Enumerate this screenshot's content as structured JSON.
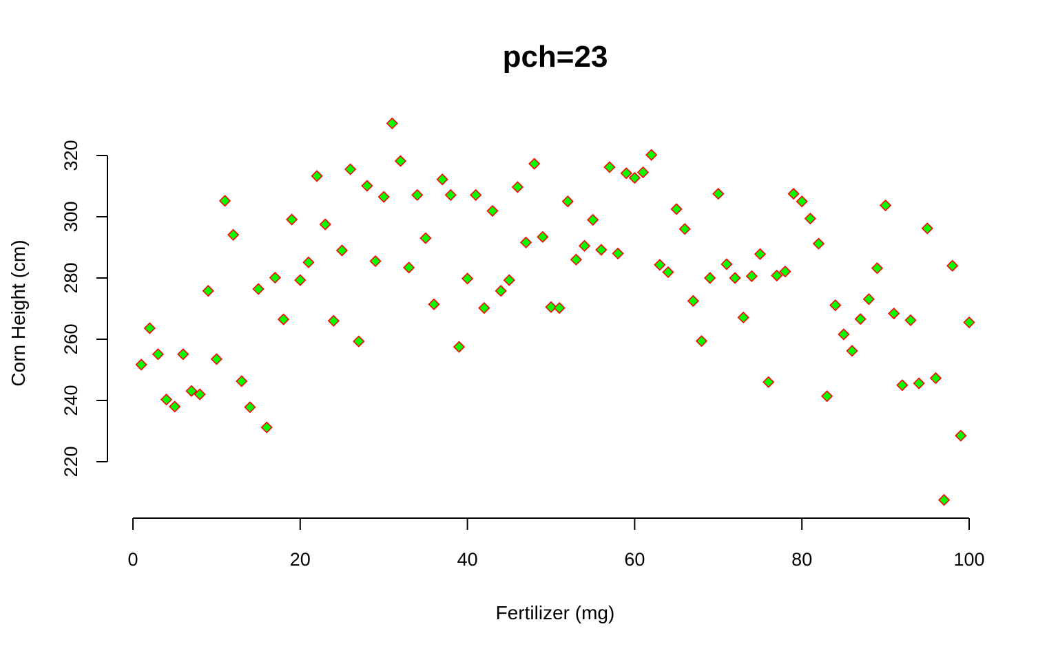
{
  "chart_data": {
    "type": "scatter",
    "title": "pch=23",
    "xlabel": "Fertilizer (mg)",
    "ylabel": "Corn Height (cm)",
    "xlim": [
      0,
      100
    ],
    "ylim": [
      207.5,
      330.5
    ],
    "x_ticks": [
      0,
      20,
      40,
      60,
      80,
      100
    ],
    "x_tick_labels": [
      "0",
      "20",
      "40",
      "60",
      "80",
      "100"
    ],
    "y_ticks": [
      220,
      240,
      260,
      280,
      300,
      320
    ],
    "y_tick_labels": [
      "220",
      "240",
      "260",
      "280",
      "300",
      "320"
    ],
    "grid": false,
    "marker": {
      "shape": "diamond",
      "fill": "#00ff00",
      "stroke": "#ff0000"
    },
    "points": [
      [
        1,
        251.7
      ],
      [
        2,
        263.6
      ],
      [
        3,
        255.1
      ],
      [
        4,
        240.3
      ],
      [
        5,
        238.0
      ],
      [
        6,
        255.1
      ],
      [
        7,
        243.1
      ],
      [
        8,
        242.0
      ],
      [
        9,
        275.8
      ],
      [
        10,
        253.5
      ],
      [
        11,
        305.2
      ],
      [
        12,
        294.1
      ],
      [
        13,
        246.3
      ],
      [
        14,
        237.8
      ],
      [
        15,
        276.4
      ],
      [
        16,
        231.2
      ],
      [
        17,
        280.1
      ],
      [
        18,
        266.5
      ],
      [
        19,
        299.1
      ],
      [
        20,
        279.3
      ],
      [
        21,
        285.1
      ],
      [
        22,
        313.3
      ],
      [
        23,
        297.5
      ],
      [
        24,
        266.0
      ],
      [
        25,
        289.0
      ],
      [
        26,
        315.5
      ],
      [
        27,
        259.3
      ],
      [
        28,
        310.1
      ],
      [
        29,
        285.5
      ],
      [
        30,
        306.5
      ],
      [
        31,
        330.5
      ],
      [
        32,
        318.2
      ],
      [
        33,
        283.4
      ],
      [
        34,
        307.1
      ],
      [
        35,
        293.0
      ],
      [
        36,
        271.4
      ],
      [
        37,
        312.2
      ],
      [
        38,
        307.1
      ],
      [
        39,
        257.5
      ],
      [
        40,
        279.8
      ],
      [
        41,
        307.1
      ],
      [
        42,
        270.2
      ],
      [
        43,
        301.9
      ],
      [
        44,
        275.8
      ],
      [
        45,
        279.3
      ],
      [
        46,
        309.7
      ],
      [
        47,
        291.6
      ],
      [
        48,
        317.3
      ],
      [
        49,
        293.4
      ],
      [
        50,
        270.5
      ],
      [
        51,
        270.2
      ],
      [
        52,
        305.0
      ],
      [
        53,
        286.0
      ],
      [
        54,
        290.5
      ],
      [
        55,
        299.0
      ],
      [
        56,
        289.2
      ],
      [
        57,
        316.2
      ],
      [
        58,
        288.0
      ],
      [
        59,
        314.2
      ],
      [
        60,
        312.7
      ],
      [
        61,
        314.5
      ],
      [
        62,
        320.2
      ],
      [
        63,
        284.3
      ],
      [
        64,
        281.9
      ],
      [
        65,
        302.5
      ],
      [
        66,
        296.0
      ],
      [
        67,
        272.5
      ],
      [
        68,
        259.4
      ],
      [
        69,
        280.0
      ],
      [
        70,
        307.5
      ],
      [
        71,
        284.5
      ],
      [
        72,
        280.0
      ],
      [
        73,
        267.1
      ],
      [
        74,
        280.6
      ],
      [
        75,
        287.8
      ],
      [
        76,
        246.0
      ],
      [
        77,
        280.8
      ],
      [
        78,
        282.1
      ],
      [
        79,
        307.5
      ],
      [
        80,
        305.0
      ],
      [
        81,
        299.4
      ],
      [
        82,
        291.2
      ],
      [
        83,
        241.4
      ],
      [
        84,
        271.1
      ],
      [
        85,
        261.6
      ],
      [
        86,
        256.2
      ],
      [
        87,
        266.6
      ],
      [
        88,
        273.1
      ],
      [
        89,
        283.2
      ],
      [
        90,
        303.7
      ],
      [
        91,
        268.4
      ],
      [
        92,
        245.0
      ],
      [
        93,
        266.2
      ],
      [
        94,
        245.6
      ],
      [
        95,
        296.2
      ],
      [
        96,
        247.3
      ],
      [
        97,
        207.5
      ],
      [
        98,
        284.0
      ],
      [
        99,
        228.5
      ],
      [
        100,
        265.5
      ]
    ]
  }
}
